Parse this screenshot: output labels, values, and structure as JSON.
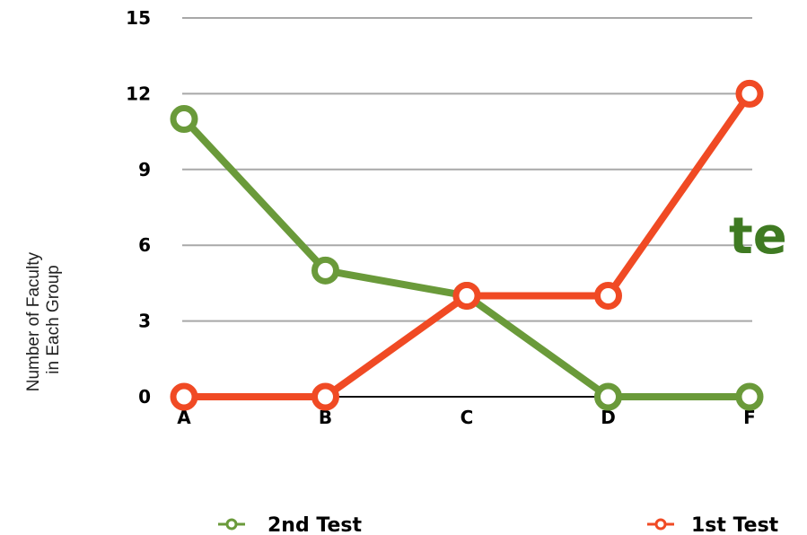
{
  "chart_data": {
    "type": "line",
    "title": "",
    "xlabel": "",
    "ylabel": "Number of Faculty in Each Group",
    "ylabel_lines": [
      "Number of Faculty",
      "in Each Group"
    ],
    "categories": [
      "A",
      "B",
      "C",
      "D",
      "F"
    ],
    "ylim": [
      0,
      15
    ],
    "yticks": [
      0,
      3,
      6,
      9,
      12,
      15
    ],
    "grid": true,
    "legend_position": "bottom",
    "series": [
      {
        "name": "2nd Test",
        "color": "#6a9a3a",
        "values": [
          11,
          5,
          4,
          0,
          0
        ]
      },
      {
        "name": "1st Test",
        "color": "#f04a24",
        "values": [
          0,
          0,
          4,
          4,
          12
        ]
      }
    ]
  },
  "watermark": {
    "text": "te",
    "color": "#3f7a22"
  }
}
